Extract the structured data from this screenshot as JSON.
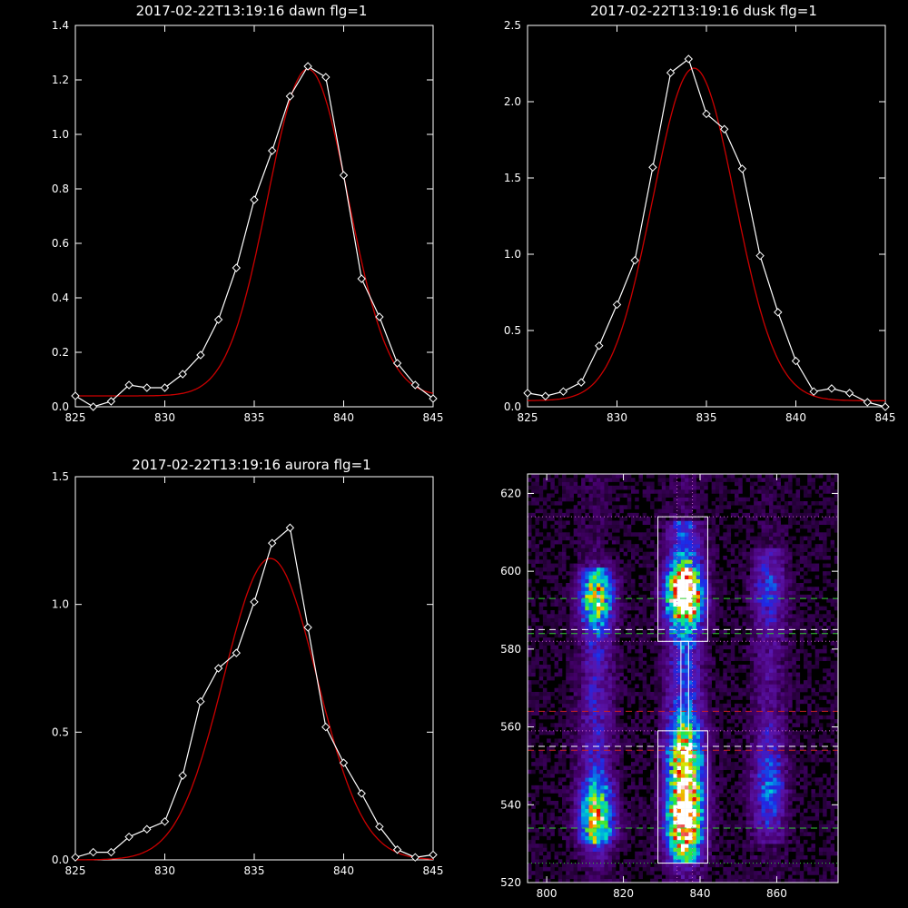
{
  "chart_data": [
    {
      "type": "line",
      "title": "2017-02-22T13:19:16 dawn flg=1",
      "xlim": [
        825,
        845
      ],
      "ylim": [
        0,
        1.4
      ],
      "xticks": [
        "825",
        "830",
        "835",
        "840",
        "845"
      ],
      "yticks": [
        "0.0",
        "0.2",
        "0.4",
        "0.6",
        "0.8",
        "1.0",
        "1.2",
        "1.4"
      ],
      "series": [
        {
          "color": "#ffffff",
          "marker": "diamond",
          "x": [
            825,
            826,
            827,
            828,
            829,
            830,
            831,
            832,
            833,
            834,
            835,
            836,
            837,
            838,
            839,
            840,
            841,
            842,
            843,
            844,
            845
          ],
          "y": [
            0.04,
            0.0,
            0.02,
            0.08,
            0.07,
            0.07,
            0.12,
            0.19,
            0.32,
            0.51,
            0.76,
            0.94,
            1.14,
            1.25,
            1.21,
            0.85,
            0.47,
            0.33,
            0.16,
            0.08,
            0.03
          ]
        },
        {
          "color": "#cc0000",
          "fit": {
            "a": 1.2,
            "mu": 838.0,
            "sigma": 2.25,
            "b": 0.04
          }
        }
      ]
    },
    {
      "type": "line",
      "title": "2017-02-22T13:19:16 dusk flg=1",
      "xlim": [
        825,
        845
      ],
      "ylim": [
        0,
        2.5
      ],
      "xticks": [
        "825",
        "830",
        "835",
        "840",
        "845"
      ],
      "yticks": [
        "0.0",
        "0.5",
        "1.0",
        "1.5",
        "2.0",
        "2.5"
      ],
      "series": [
        {
          "color": "#ffffff",
          "marker": "diamond",
          "x": [
            825,
            826,
            827,
            828,
            829,
            830,
            831,
            832,
            833,
            834,
            835,
            836,
            837,
            838,
            839,
            840,
            841,
            842,
            843,
            844,
            845
          ],
          "y": [
            0.09,
            0.07,
            0.1,
            0.16,
            0.4,
            0.67,
            0.96,
            1.57,
            2.19,
            2.28,
            1.92,
            1.82,
            1.56,
            0.99,
            0.62,
            0.3,
            0.1,
            0.12,
            0.09,
            0.03,
            0.0
          ]
        },
        {
          "color": "#cc0000",
          "fit": {
            "a": 2.18,
            "mu": 834.3,
            "sigma": 2.3,
            "b": 0.04
          }
        }
      ]
    },
    {
      "type": "line",
      "title": "2017-02-22T13:19:16 aurora flg=1",
      "xlim": [
        825,
        845
      ],
      "ylim": [
        0,
        1.5
      ],
      "xticks": [
        "825",
        "830",
        "835",
        "840",
        "845"
      ],
      "yticks": [
        "0.0",
        "0.5",
        "1.0",
        "1.5"
      ],
      "series": [
        {
          "color": "#ffffff",
          "marker": "diamond",
          "x": [
            825,
            826,
            827,
            828,
            829,
            830,
            831,
            832,
            833,
            834,
            835,
            836,
            837,
            838,
            839,
            840,
            841,
            842,
            843,
            844,
            845
          ],
          "y": [
            0.01,
            0.03,
            0.03,
            0.09,
            0.12,
            0.15,
            0.33,
            0.62,
            0.75,
            0.81,
            1.01,
            1.24,
            1.3,
            0.91,
            0.52,
            0.38,
            0.26,
            0.13,
            0.04,
            0.01,
            0.02
          ]
        },
        {
          "color": "#cc0000",
          "fit": {
            "a": 1.18,
            "mu": 835.9,
            "sigma": 2.6,
            "b": 0.0
          }
        }
      ]
    },
    {
      "type": "heatmap",
      "xlim": [
        795,
        876
      ],
      "ylim": [
        520,
        625
      ],
      "xticks": [
        "800",
        "820",
        "840",
        "860"
      ],
      "yticks": [
        "520",
        "540",
        "560",
        "580",
        "600",
        "620"
      ],
      "bands": [
        {
          "center_x": 813,
          "width": 3.0,
          "y_range": [
            530,
            600
          ],
          "peaks": [
            {
              "y": 593,
              "value": 0.55,
              "spread": 5
            },
            {
              "y": 537,
              "value": 0.6,
              "spread": 6
            }
          ],
          "base": 0.25
        },
        {
          "center_x": 836,
          "width": 3.2,
          "y_range": [
            525,
            612
          ],
          "peaks": [
            {
              "y": 594,
              "value": 1.0,
              "spread": 5
            },
            {
              "y": 537,
              "value": 0.85,
              "spread": 7
            },
            {
              "y": 553,
              "value": 0.55,
              "spread": 6
            }
          ],
          "base": 0.35
        },
        {
          "center_x": 858,
          "width": 3.0,
          "y_range": [
            530,
            605
          ],
          "peaks": [
            {
              "y": 595,
              "value": 0.2,
              "spread": 6
            },
            {
              "y": 545,
              "value": 0.25,
              "spread": 8
            }
          ],
          "base": 0.15
        }
      ],
      "boxes": [
        {
          "x": [
            829,
            842
          ],
          "y": [
            582,
            614
          ],
          "color": "#ffffff"
        },
        {
          "x": [
            829,
            842
          ],
          "y": [
            525,
            559
          ],
          "color": "#ffffff"
        },
        {
          "x": [
            835,
            837
          ],
          "y": [
            559,
            582
          ],
          "color": "#ffffff"
        }
      ],
      "hlines": [
        {
          "y": 614,
          "color": "#cc66cc",
          "style": "dotted"
        },
        {
          "y": 593,
          "color": "#33cc33",
          "style": "dashed"
        },
        {
          "y": 585,
          "color": "#ffffff",
          "style": "dashed"
        },
        {
          "y": 584,
          "color": "#33cc33",
          "style": "dashed"
        },
        {
          "y": 582,
          "color": "#cc66cc",
          "style": "dotted"
        },
        {
          "y": 564,
          "color": "#cc2222",
          "style": "dashed"
        },
        {
          "y": 559,
          "color": "#cc66cc",
          "style": "dotted"
        },
        {
          "y": 555,
          "color": "#ffffff",
          "style": "dashed"
        },
        {
          "y": 554,
          "color": "#cc2222",
          "style": "dashed"
        },
        {
          "y": 534,
          "color": "#33cc33",
          "style": "dashed"
        },
        {
          "y": 525,
          "color": "#33cc33",
          "style": "dotted"
        }
      ],
      "vlines": [
        {
          "x": 834,
          "color": "#cc66cc",
          "style": "dotted"
        },
        {
          "x": 838,
          "color": "#cc66cc",
          "style": "dotted"
        }
      ]
    }
  ]
}
